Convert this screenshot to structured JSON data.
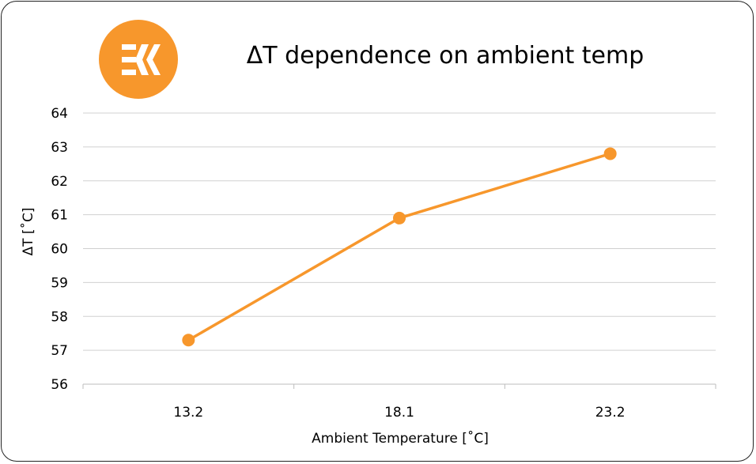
{
  "chart_data": {
    "type": "line",
    "title": "ΔT dependence on ambient temp",
    "xlabel": "Ambient Temperature [˚C]",
    "ylabel": "ΔT [˚C]",
    "categories": [
      "13.2",
      "18.1",
      "23.2"
    ],
    "series": [
      {
        "values": [
          57.3,
          60.9,
          62.8
        ]
      }
    ],
    "ylim": [
      56,
      64
    ],
    "yticks": [
      "56",
      "57",
      "58",
      "59",
      "60",
      "61",
      "62",
      "63",
      "64"
    ],
    "grid": true,
    "legend": "none",
    "line_color": "#f7972c",
    "logo_color": "#f7972c",
    "logo_icon": "ek-logo-icon"
  }
}
